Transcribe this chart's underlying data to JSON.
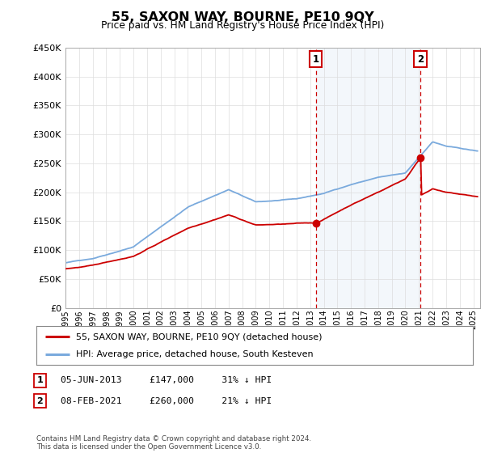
{
  "title": "55, SAXON WAY, BOURNE, PE10 9QY",
  "subtitle": "Price paid vs. HM Land Registry's House Price Index (HPI)",
  "ylabel_values": [
    "£0",
    "£50K",
    "£100K",
    "£150K",
    "£200K",
    "£250K",
    "£300K",
    "£350K",
    "£400K",
    "£450K"
  ],
  "ylim": [
    0,
    450000
  ],
  "xlim_start": 1995.0,
  "xlim_end": 2025.5,
  "sale1_date": 2013.42,
  "sale1_price": 147000,
  "sale2_date": 2021.1,
  "sale2_price": 260000,
  "sale1_label": "1",
  "sale2_label": "2",
  "sale1_info": "05-JUN-2013     £147,000     31% ↓ HPI",
  "sale2_info": "08-FEB-2021     £260,000     21% ↓ HPI",
  "legend_line1": "55, SAXON WAY, BOURNE, PE10 9QY (detached house)",
  "legend_line2": "HPI: Average price, detached house, South Kesteven",
  "footnote": "Contains HM Land Registry data © Crown copyright and database right 2024.\nThis data is licensed under the Open Government Licence v3.0.",
  "hpi_color": "#7aaadd",
  "price_color": "#cc0000",
  "bg_color": "#ffffff",
  "grid_color": "#dddddd"
}
